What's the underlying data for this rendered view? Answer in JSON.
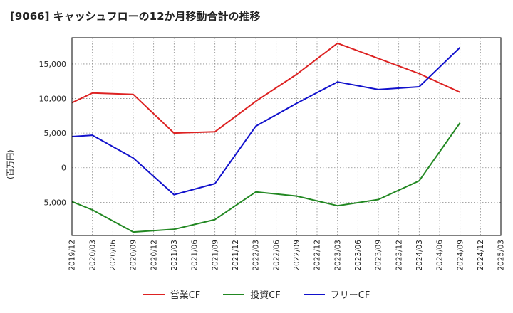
{
  "chart_data": {
    "type": "line",
    "title": "[9066]  キャッシュフローの12か月移動合計の推移",
    "ylabel": "(百万円)",
    "xlabel": "",
    "ylim": [
      -9800,
      18800
    ],
    "yticks": [
      -5000,
      0,
      5000,
      10000,
      15000
    ],
    "ytick_labels": [
      "-5,000",
      "0",
      "5,000",
      "10,000",
      "15,000"
    ],
    "categories": [
      "2019/12",
      "2020/03",
      "2020/06",
      "2020/09",
      "2020/12",
      "2021/03",
      "2021/06",
      "2021/09",
      "2021/12",
      "2022/03",
      "2022/06",
      "2022/09",
      "2022/12",
      "2023/03",
      "2023/06",
      "2023/09",
      "2023/12",
      "2024/03",
      "2024/06",
      "2024/09",
      "2024/12",
      "2025/03"
    ],
    "grid": true,
    "legend_position": "bottom",
    "series": [
      {
        "name": "営業CF",
        "color": "#dd2222",
        "values": [
          9400,
          10800,
          null,
          10600,
          null,
          5000,
          null,
          5200,
          null,
          9600,
          null,
          13500,
          null,
          18000,
          null,
          15800,
          null,
          13600,
          null,
          10900,
          null,
          null
        ]
      },
      {
        "name": "投資CF",
        "color": "#228822",
        "values": [
          -4900,
          -6100,
          null,
          -9300,
          null,
          -8900,
          null,
          -7500,
          null,
          -3500,
          null,
          -4100,
          null,
          -5500,
          null,
          -4600,
          null,
          -1900,
          null,
          6500,
          null,
          null
        ]
      },
      {
        "name": "フリーCF",
        "color": "#1111cc",
        "values": [
          4500,
          4700,
          null,
          1400,
          null,
          -3900,
          null,
          -2300,
          null,
          6000,
          null,
          9300,
          null,
          12400,
          null,
          11300,
          null,
          11700,
          null,
          17400,
          null,
          null
        ]
      }
    ]
  }
}
